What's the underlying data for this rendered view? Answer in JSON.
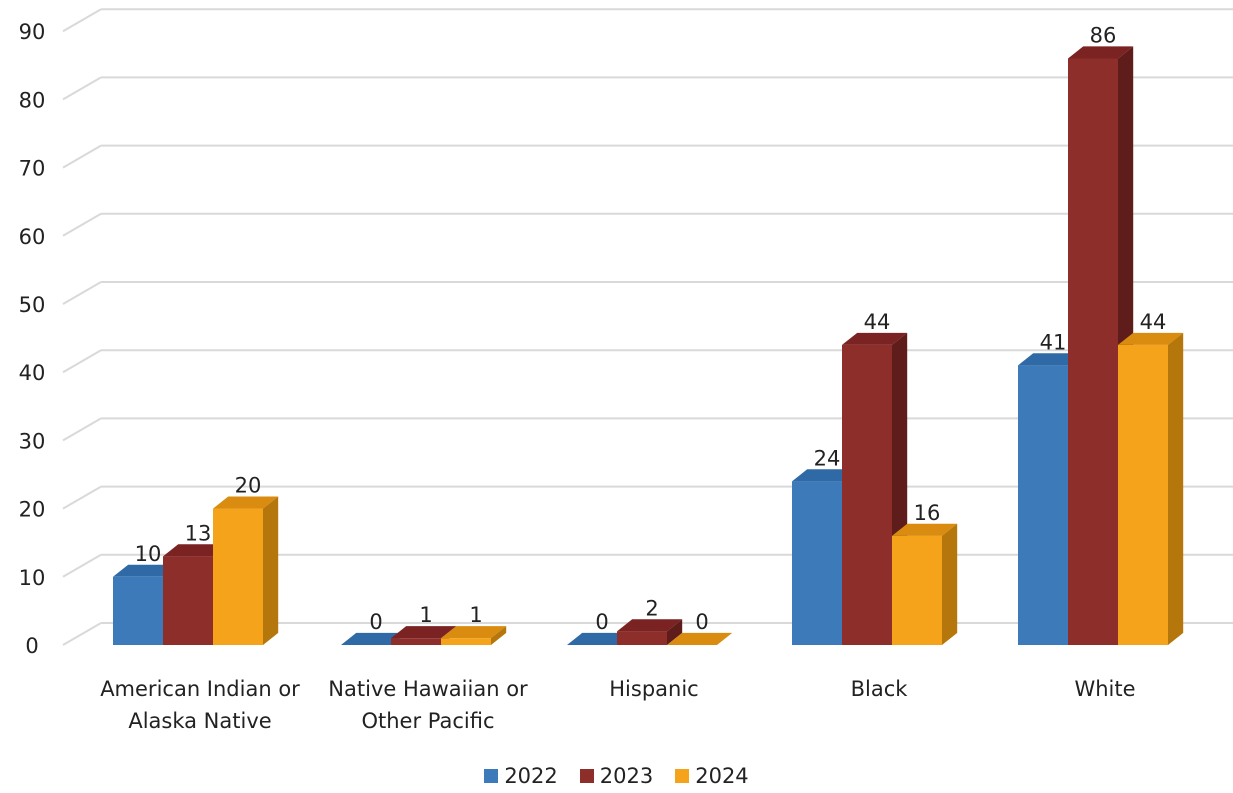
{
  "chart_data": {
    "type": "bar",
    "title": "",
    "xlabel": "",
    "ylabel": "",
    "ylim": [
      0,
      90
    ],
    "y_ticks": [
      "0",
      "10",
      "20",
      "30",
      "40",
      "50",
      "60",
      "70",
      "80",
      "90"
    ],
    "grid": true,
    "three_d": true,
    "legend_position": "bottom",
    "categories": [
      [
        "American Indian or",
        "Alaska Native"
      ],
      [
        "Native Hawaiian or",
        "Other Pacific"
      ],
      [
        "Hispanic"
      ],
      [
        "Black"
      ],
      [
        "White"
      ]
    ],
    "series": [
      {
        "name": "2022",
        "values": [
          10,
          0,
          0,
          24,
          41
        ],
        "color": "#3d7ab9",
        "side_color": "#2b5a8a",
        "top_color": "#2f6aa6"
      },
      {
        "name": "2023",
        "values": [
          13,
          1,
          2,
          44,
          86
        ],
        "color": "#8e2e2b",
        "side_color": "#5e1c1b",
        "top_color": "#7a2322"
      },
      {
        "name": "2024",
        "values": [
          20,
          1,
          0,
          16,
          44
        ],
        "color": "#f5a31a",
        "side_color": "#b5760c",
        "top_color": "#d98c0f"
      }
    ]
  }
}
